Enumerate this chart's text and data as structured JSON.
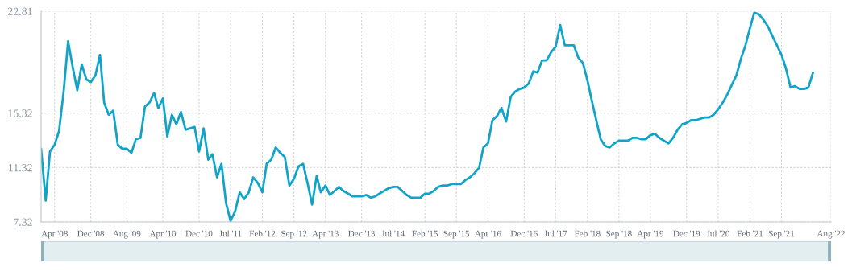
{
  "chart_data": {
    "type": "line",
    "x": [
      "2008-01",
      "2008-02",
      "2008-03",
      "2008-04",
      "2008-05",
      "2008-06",
      "2008-07",
      "2008-08",
      "2008-09",
      "2008-10",
      "2008-11",
      "2008-12",
      "2009-01",
      "2009-02",
      "2009-03",
      "2009-04",
      "2009-05",
      "2009-06",
      "2009-07",
      "2009-08",
      "2009-09",
      "2009-10",
      "2009-11",
      "2009-12",
      "2010-01",
      "2010-02",
      "2010-03",
      "2010-04",
      "2010-05",
      "2010-06",
      "2010-07",
      "2010-08",
      "2010-09",
      "2010-10",
      "2010-11",
      "2010-12",
      "2011-01",
      "2011-02",
      "2011-03",
      "2011-04",
      "2011-05",
      "2011-06",
      "2011-07",
      "2011-08",
      "2011-09",
      "2011-10",
      "2011-11",
      "2011-12",
      "2012-01",
      "2012-02",
      "2012-03",
      "2012-04",
      "2012-05",
      "2012-06",
      "2012-07",
      "2012-08",
      "2012-09",
      "2012-10",
      "2012-11",
      "2012-12",
      "2013-01",
      "2013-02",
      "2013-03",
      "2013-04",
      "2013-05",
      "2013-06",
      "2013-07",
      "2013-08",
      "2013-09",
      "2013-10",
      "2013-11",
      "2013-12",
      "2014-01",
      "2014-02",
      "2014-03",
      "2014-04",
      "2014-05",
      "2014-06",
      "2014-07",
      "2014-08",
      "2014-09",
      "2014-10",
      "2014-11",
      "2014-12",
      "2015-01",
      "2015-02",
      "2015-03",
      "2015-04",
      "2015-05",
      "2015-06",
      "2015-07",
      "2015-08",
      "2015-09",
      "2015-10",
      "2015-11",
      "2015-12",
      "2016-01",
      "2016-02",
      "2016-03",
      "2016-04",
      "2016-05",
      "2016-06",
      "2016-07",
      "2016-08",
      "2016-09",
      "2016-10",
      "2016-11",
      "2016-12",
      "2017-01",
      "2017-02",
      "2017-03",
      "2017-04",
      "2017-05",
      "2017-06",
      "2017-07",
      "2017-08",
      "2017-09",
      "2017-10",
      "2017-11",
      "2017-12",
      "2018-01",
      "2018-02",
      "2018-03",
      "2018-04",
      "2018-05",
      "2018-06",
      "2018-07",
      "2018-08",
      "2018-09",
      "2018-10",
      "2018-11",
      "2018-12",
      "2019-01",
      "2019-02",
      "2019-03",
      "2019-04",
      "2019-05",
      "2019-06",
      "2019-07",
      "2019-08",
      "2019-09",
      "2019-10",
      "2019-11",
      "2019-12",
      "2020-01",
      "2020-02",
      "2020-03",
      "2020-04",
      "2020-05",
      "2020-06",
      "2020-07",
      "2020-08",
      "2020-09",
      "2020-10",
      "2020-11",
      "2020-12",
      "2021-01",
      "2021-02",
      "2021-03",
      "2021-04",
      "2021-05",
      "2021-06",
      "2021-07",
      "2021-08",
      "2021-09",
      "2021-10",
      "2021-11",
      "2021-12",
      "2022-01",
      "2022-02",
      "2022-03",
      "2022-04"
    ],
    "series": [
      {
        "color": "#12a4c8",
        "values": [
          12.7,
          8.9,
          12.5,
          13.0,
          14.0,
          16.9,
          20.6,
          18.7,
          17.0,
          18.9,
          17.8,
          17.6,
          18.1,
          19.6,
          16.1,
          15.2,
          15.5,
          13.0,
          12.7,
          12.7,
          12.4,
          13.4,
          13.5,
          15.8,
          16.1,
          16.8,
          15.7,
          16.4,
          13.6,
          15.2,
          14.5,
          15.4,
          14.1,
          14.2,
          14.3,
          12.5,
          14.2,
          11.9,
          12.3,
          10.6,
          11.6,
          8.7,
          7.4,
          8.1,
          9.5,
          9.0,
          9.5,
          10.6,
          10.2,
          9.5,
          11.6,
          11.9,
          12.8,
          12.4,
          12.1,
          10.0,
          10.5,
          11.4,
          11.6,
          10.2,
          8.6,
          10.7,
          9.5,
          10.0,
          9.3,
          9.6,
          9.9,
          9.6,
          9.4,
          9.2,
          9.2,
          9.2,
          9.3,
          9.1,
          9.2,
          9.4,
          9.6,
          9.8,
          9.9,
          9.9,
          9.6,
          9.3,
          9.1,
          9.1,
          9.1,
          9.4,
          9.4,
          9.6,
          9.9,
          10.0,
          10.0,
          10.1,
          10.1,
          10.1,
          10.4,
          10.6,
          10.9,
          11.3,
          12.8,
          13.1,
          14.8,
          15.1,
          15.7,
          14.7,
          16.5,
          16.9,
          17.1,
          17.2,
          17.5,
          18.4,
          18.3,
          19.2,
          19.2,
          19.8,
          20.2,
          21.8,
          20.3,
          20.3,
          20.3,
          19.4,
          19.0,
          17.7,
          16.3,
          14.8,
          13.4,
          12.9,
          12.8,
          13.1,
          13.3,
          13.3,
          13.3,
          13.5,
          13.5,
          13.4,
          13.4,
          13.7,
          13.8,
          13.5,
          13.3,
          13.1,
          13.5,
          14.1,
          14.5,
          14.6,
          14.8,
          14.8,
          14.9,
          15.0,
          15.0,
          15.2,
          15.6,
          16.1,
          16.7,
          17.4,
          18.1,
          19.3,
          20.3,
          21.6,
          22.7,
          22.6,
          22.2,
          21.7,
          21.0,
          20.3,
          19.6,
          18.6,
          17.2,
          17.3,
          17.1,
          17.1,
          17.2,
          18.3
        ]
      }
    ],
    "xlim": [
      "2008-01",
      "2022-08"
    ],
    "xticks": [
      {
        "value": "2008-04",
        "label": "Apr '08"
      },
      {
        "value": "2008-12",
        "label": "Dec '08"
      },
      {
        "value": "2009-08",
        "label": "Aug '09"
      },
      {
        "value": "2010-04",
        "label": "Apr '10"
      },
      {
        "value": "2010-12",
        "label": "Dec '10"
      },
      {
        "value": "2011-07",
        "label": "Jul '11"
      },
      {
        "value": "2012-02",
        "label": "Feb '12"
      },
      {
        "value": "2012-09",
        "label": "Sep '12"
      },
      {
        "value": "2013-04",
        "label": "Apr '13"
      },
      {
        "value": "2013-12",
        "label": "Dec '13"
      },
      {
        "value": "2014-07",
        "label": "Jul '14"
      },
      {
        "value": "2015-02",
        "label": "Feb '15"
      },
      {
        "value": "2015-09",
        "label": "Sep '15"
      },
      {
        "value": "2016-04",
        "label": "Apr '16"
      },
      {
        "value": "2016-12",
        "label": "Dec '16"
      },
      {
        "value": "2017-07",
        "label": "Jul '17"
      },
      {
        "value": "2018-02",
        "label": "Feb '18"
      },
      {
        "value": "2018-09",
        "label": "Sep '18"
      },
      {
        "value": "2019-04",
        "label": "Apr '19"
      },
      {
        "value": "2019-12",
        "label": "Dec '19"
      },
      {
        "value": "2020-07",
        "label": "Jul '20"
      },
      {
        "value": "2021-02",
        "label": "Feb '21"
      },
      {
        "value": "2021-09",
        "label": "Sep '21"
      },
      {
        "value": "2022-08",
        "label": "Aug '22"
      }
    ],
    "ylim": [
      7.32,
      22.81
    ],
    "yticks": [
      7.32,
      11.32,
      15.32,
      22.81
    ],
    "grid": true,
    "marker": "none",
    "line_style": "solid"
  }
}
